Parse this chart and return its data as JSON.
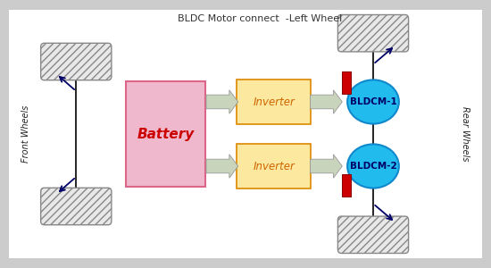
{
  "bg_color": "#cccccc",
  "fig_bg_color": "#ffffff",
  "title_text": "BLDC Motor connect  -Left Wheel",
  "battery_label": "Battery",
  "inverter1_label": "Inverter",
  "inverter2_label": "Inverter",
  "motor1_label": "BLDCM-1",
  "motor2_label": "BLDCM-2",
  "front_wheels_label": "Front Wheels",
  "rear_wheels_label": "Rear Wheels",
  "battery_color": "#f0b8cc",
  "battery_text_color": "#cc0000",
  "battery_edge_color": "#dd6688",
  "inverter_color": "#fde8a0",
  "inverter_text_color": "#cc6600",
  "inverter_edge_color": "#dd8800",
  "motor_color": "#22bbee",
  "motor_text_color": "#000066",
  "motor_edge_color": "#1188cc",
  "red_connector_color": "#cc0000",
  "arrow_fill": "#c8d4bb",
  "arrow_edge": "#999999",
  "line_color": "#000000",
  "wheel_hatch": "////",
  "wheel_face_color": "#e8e8e8",
  "wheel_edge_color": "#888888",
  "annot_arrow_color": "#000066",
  "label_color": "#222222",
  "title_color": "#333333"
}
